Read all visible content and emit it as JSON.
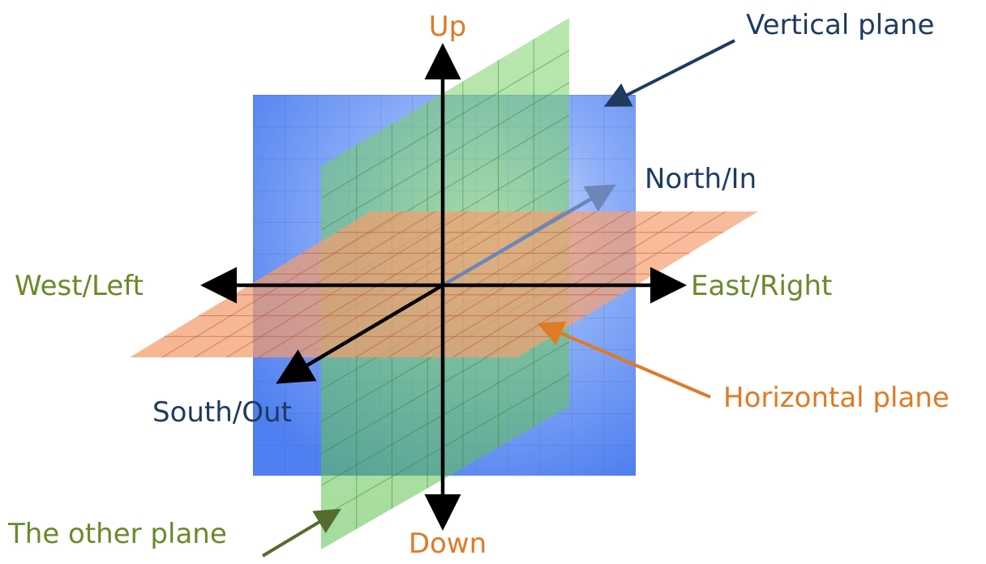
{
  "diagram": {
    "title_hidden": false,
    "labels": {
      "up": "Up",
      "down": "Down",
      "north": "North/In",
      "south": "South/Out",
      "east": "East/Right",
      "west": "West/Left",
      "vertical_plane": "Vertical plane",
      "horizontal_plane": "Horizontal plane",
      "other_plane": "The other plane"
    },
    "colors": {
      "vertical_plane": "#4a7ef0",
      "horizontal_plane": "#f08050",
      "other_plane": "#5fc24f",
      "axis": "#000000",
      "orange_text": "#e07a24",
      "navy_text": "#1e3a5f",
      "olive_text": "#6a8a2a"
    }
  }
}
